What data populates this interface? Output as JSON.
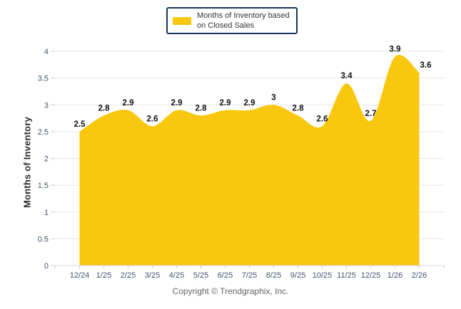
{
  "legend": {
    "label": "Months of Inventory based on Closed Sales"
  },
  "footer": {
    "copyright": "Copyright © Trendgraphix, Inc."
  },
  "chart_data": {
    "type": "area",
    "categories": [
      "12/24",
      "1/25",
      "2/25",
      "3/25",
      "4/25",
      "5/25",
      "6/25",
      "7/25",
      "8/25",
      "9/25",
      "10/25",
      "11/25",
      "12/25",
      "1/26",
      "2/26"
    ],
    "series": [
      {
        "name": "Months of Inventory based on Closed Sales",
        "values": [
          2.5,
          2.8,
          2.9,
          2.6,
          2.9,
          2.8,
          2.9,
          2.9,
          3,
          2.8,
          2.6,
          3.4,
          2.7,
          3.9,
          3.6
        ]
      }
    ],
    "ylabel": "Months of Inventory",
    "xlabel": "",
    "ylim": [
      0,
      4
    ],
    "ytick_step": 0.5,
    "grid": true,
    "smooth": true,
    "legend_position": "top-center",
    "colors": {
      "series_fill": "#F9C70D",
      "grid_line": "#E7E7E7",
      "axis_line": "#D6D6D6",
      "tick_mark": "#C9C9C9",
      "tick_label": "#44546A",
      "data_label": "#111111",
      "legend_border": "#17365D",
      "legend_text": "#333333",
      "ylabel_text": "#2B2B2B",
      "copyright_text": "#666666"
    }
  }
}
